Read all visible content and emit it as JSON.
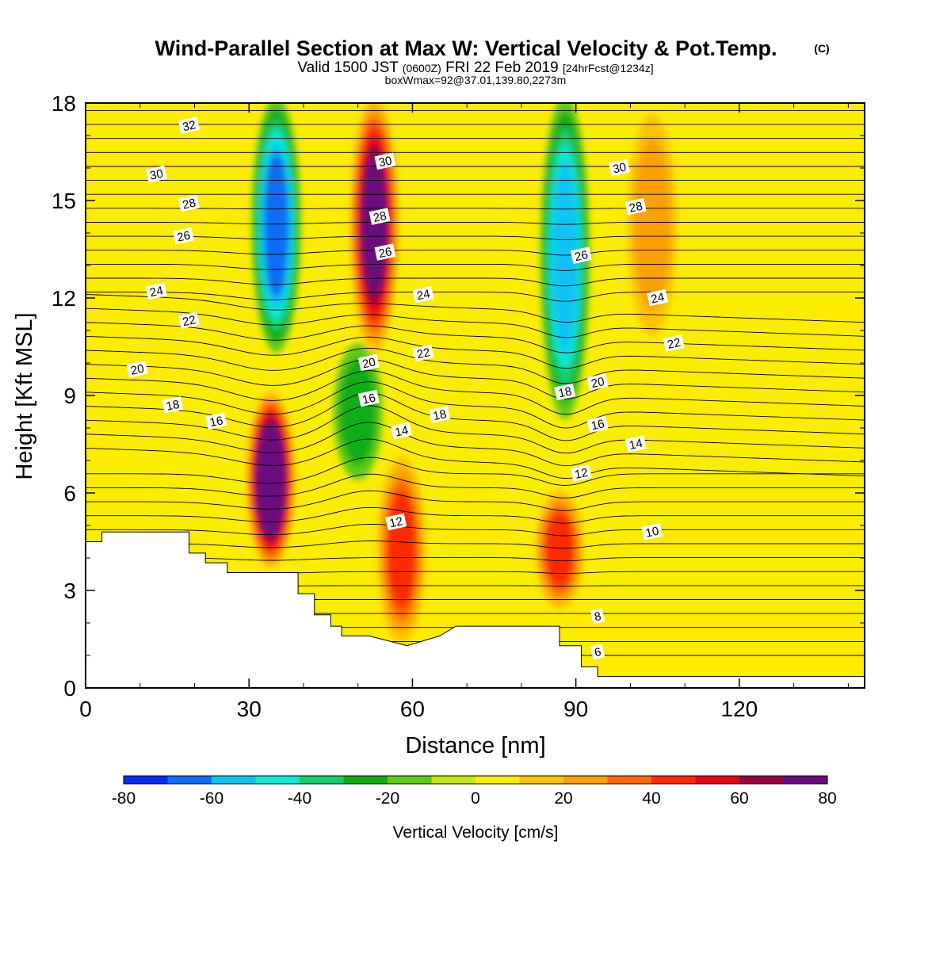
{
  "header": {
    "title": "Wind-Parallel Section at Max W: Vertical Velocity & Pot.Temp.",
    "title_suffix": "(C)",
    "valid_prefix": "Valid 1500 JST",
    "valid_utc": "(0600Z)",
    "valid_date": "FRI 22 Feb 2019",
    "forecast_info": "[24hrFcst@1234z]",
    "box_info": "boxWmax=92@37.01,139.80,2273m"
  },
  "chart_data": {
    "type": "heatmap",
    "xlabel": "Distance [nm]",
    "ylabel": "Height [Kft MSL]",
    "xlim": [
      0,
      143
    ],
    "ylim": [
      0,
      18
    ],
    "x_ticks": [
      0,
      30,
      60,
      90,
      120
    ],
    "y_ticks": [
      0,
      3,
      6,
      9,
      12,
      15,
      18
    ],
    "x_tick_labels": [
      "0",
      "30",
      "60",
      "90",
      "120"
    ],
    "y_tick_labels": [
      "0",
      "3",
      "6",
      "9",
      "12",
      "15",
      "18"
    ],
    "colorbar": {
      "title": "Vertical Velocity [cm/s]",
      "range": [
        -80,
        80
      ],
      "interval": 10,
      "tick_values": [
        -80,
        -60,
        -40,
        -20,
        0,
        20,
        40,
        60,
        80
      ],
      "tick_labels": [
        "-80",
        "-60",
        "-40",
        "-20",
        "0",
        "20",
        "40",
        "60",
        "80"
      ],
      "colors": [
        "#0a2bf2",
        "#0f6ef4",
        "#0cc4f4",
        "#0ee8d4",
        "#12cf6d",
        "#10ad14",
        "#5ecb14",
        "#c2e80c",
        "#fbec00",
        "#fdc300",
        "#fca000",
        "#fd6800",
        "#fc2c00",
        "#df0716",
        "#9c0345",
        "#6a0a7f"
      ]
    },
    "vertical_velocity_features": [
      {
        "kind": "downdraft",
        "x": 35,
        "y_bottom": 10.5,
        "y_top": 18,
        "peak": -65
      },
      {
        "kind": "downdraft",
        "x": 50,
        "y_bottom": 6.5,
        "y_top": 10.5,
        "peak": -25
      },
      {
        "kind": "downdraft",
        "x": 88,
        "y_bottom": 8.5,
        "y_top": 18,
        "peak": -55
      },
      {
        "kind": "updraft",
        "x": 34,
        "y_bottom": 3.8,
        "y_top": 9,
        "peak": 92
      },
      {
        "kind": "updraft",
        "x": 53,
        "y_bottom": 10.5,
        "y_top": 18,
        "peak": 75
      },
      {
        "kind": "updraft",
        "x": 58,
        "y_bottom": 1.5,
        "y_top": 7,
        "peak": 48
      },
      {
        "kind": "updraft",
        "x": 87,
        "y_bottom": 2.5,
        "y_top": 6,
        "peak": 42
      },
      {
        "kind": "updraft",
        "x": 104,
        "y_bottom": 11,
        "y_top": 17.5,
        "peak": 22
      }
    ],
    "potential_temperature_contours": {
      "units": "C",
      "interval": 1,
      "labels": [
        {
          "value": "32",
          "x": 19,
          "y": 17.3
        },
        {
          "value": "30",
          "x": 13,
          "y": 15.8
        },
        {
          "value": "28",
          "x": 19,
          "y": 14.9
        },
        {
          "value": "26",
          "x": 18,
          "y": 13.9
        },
        {
          "value": "24",
          "x": 13,
          "y": 12.2
        },
        {
          "value": "22",
          "x": 19,
          "y": 11.3
        },
        {
          "value": "20",
          "x": 9.5,
          "y": 9.8
        },
        {
          "value": "18",
          "x": 16,
          "y": 8.7
        },
        {
          "value": "16",
          "x": 24,
          "y": 8.2
        },
        {
          "value": "30",
          "x": 55,
          "y": 16.2
        },
        {
          "value": "28",
          "x": 54,
          "y": 14.5
        },
        {
          "value": "26",
          "x": 55,
          "y": 13.4
        },
        {
          "value": "24",
          "x": 62,
          "y": 12.1
        },
        {
          "value": "22",
          "x": 62,
          "y": 10.3
        },
        {
          "value": "20",
          "x": 52,
          "y": 10
        },
        {
          "value": "16",
          "x": 52,
          "y": 8.9
        },
        {
          "value": "18",
          "x": 65,
          "y": 8.4
        },
        {
          "value": "14",
          "x": 58,
          "y": 7.9
        },
        {
          "value": "12",
          "x": 57,
          "y": 5.1
        },
        {
          "value": "30",
          "x": 98,
          "y": 16
        },
        {
          "value": "28",
          "x": 101,
          "y": 14.8
        },
        {
          "value": "26",
          "x": 91,
          "y": 13.3
        },
        {
          "value": "24",
          "x": 105,
          "y": 12
        },
        {
          "value": "22",
          "x": 108,
          "y": 10.6
        },
        {
          "value": "20",
          "x": 94,
          "y": 9.4
        },
        {
          "value": "18",
          "x": 88,
          "y": 9.1
        },
        {
          "value": "16",
          "x": 94,
          "y": 8.1
        },
        {
          "value": "14",
          "x": 101,
          "y": 7.5
        },
        {
          "value": "12",
          "x": 91,
          "y": 6.6
        },
        {
          "value": "10",
          "x": 104,
          "y": 4.8
        },
        {
          "value": "8",
          "x": 94,
          "y": 2.2
        },
        {
          "value": "6",
          "x": 94,
          "y": 1.1
        }
      ]
    },
    "terrain_height": {
      "x": [
        0,
        3,
        3,
        19,
        19,
        22,
        22,
        26,
        26,
        39,
        39,
        42,
        42,
        45,
        45,
        47,
        47,
        49,
        49,
        52,
        52,
        59,
        59,
        65,
        65,
        68,
        68,
        87,
        87,
        91,
        91,
        94,
        94,
        143
      ],
      "y": [
        4.5,
        4.5,
        4.8,
        4.8,
        4.15,
        4.15,
        3.85,
        3.85,
        3.55,
        3.55,
        2.9,
        2.9,
        2.25,
        2.25,
        1.9,
        1.9,
        1.6,
        1.6,
        1.6,
        1.6,
        1.6,
        1.3,
        1.3,
        1.6,
        1.6,
        1.9,
        1.9,
        1.9,
        1.3,
        1.3,
        0.65,
        0.65,
        0.35,
        0.35
      ]
    }
  }
}
